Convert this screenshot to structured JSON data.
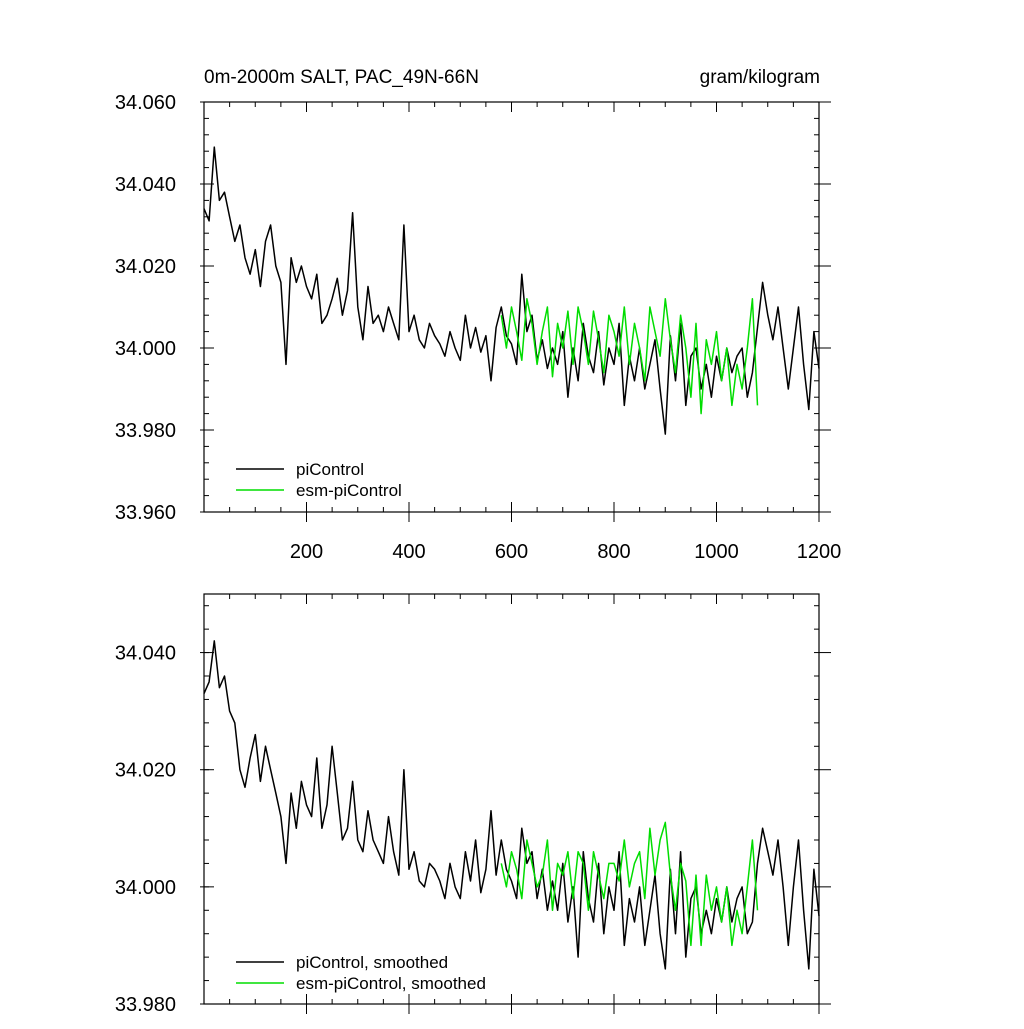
{
  "chart_data": [
    {
      "type": "line",
      "title": "0m-2000m SALT, PAC_49N-66N",
      "units": "gram/kilogram",
      "xlim": [
        0,
        1200
      ],
      "ylim": [
        33.96,
        34.06
      ],
      "xticks": [
        200,
        400,
        600,
        800,
        1000,
        1200
      ],
      "yticks": [
        "34.060",
        "34.040",
        "34.020",
        "34.000",
        "33.980",
        "33.960"
      ],
      "legend_position": "bottom-left",
      "series": [
        {
          "name": "piControl",
          "color": "#000000",
          "x": [
            0,
            10,
            20,
            30,
            40,
            50,
            60,
            70,
            80,
            90,
            100,
            110,
            120,
            130,
            140,
            150,
            160,
            170,
            180,
            190,
            200,
            210,
            220,
            230,
            240,
            250,
            260,
            270,
            280,
            290,
            300,
            310,
            320,
            330,
            340,
            350,
            360,
            370,
            380,
            390,
            400,
            410,
            420,
            430,
            440,
            450,
            460,
            470,
            480,
            490,
            500,
            510,
            520,
            530,
            540,
            550,
            560,
            570,
            580,
            590,
            600,
            610,
            620,
            630,
            640,
            650,
            660,
            670,
            680,
            690,
            700,
            710,
            720,
            730,
            740,
            750,
            760,
            770,
            780,
            790,
            800,
            810,
            820,
            830,
            840,
            850,
            860,
            870,
            880,
            890,
            900,
            910,
            920,
            930,
            940,
            950,
            960,
            970,
            980,
            990,
            1000,
            1010,
            1020,
            1030,
            1040,
            1050,
            1060,
            1070,
            1080,
            1090,
            1100,
            1110,
            1120,
            1130,
            1140,
            1150,
            1160,
            1170,
            1180,
            1190,
            1200
          ],
          "values": [
            34.034,
            34.031,
            34.049,
            34.036,
            34.038,
            34.032,
            34.026,
            34.03,
            34.022,
            34.018,
            34.024,
            34.015,
            34.026,
            34.03,
            34.02,
            34.016,
            33.996,
            34.022,
            34.016,
            34.02,
            34.015,
            34.012,
            34.018,
            34.006,
            34.008,
            34.012,
            34.017,
            34.008,
            34.014,
            34.033,
            34.01,
            34.002,
            34.015,
            34.006,
            34.008,
            34.004,
            34.01,
            34.006,
            34.002,
            34.03,
            34.004,
            34.008,
            34.002,
            34.0,
            34.006,
            34.003,
            34.001,
            33.998,
            34.004,
            34.0,
            33.997,
            34.008,
            34.0,
            34.005,
            33.999,
            34.003,
            33.992,
            34.005,
            34.01,
            34.003,
            34.001,
            33.996,
            34.018,
            34.004,
            34.008,
            33.997,
            34.002,
            33.995,
            34.0,
            33.996,
            34.004,
            33.988,
            34.0,
            33.992,
            34.006,
            33.998,
            33.994,
            34.004,
            33.991,
            34.0,
            33.996,
            34.006,
            33.986,
            33.998,
            33.992,
            34.0,
            33.99,
            33.996,
            34.002,
            33.99,
            33.979,
            34.003,
            33.992,
            34.006,
            33.986,
            33.998,
            34.0,
            33.99,
            33.996,
            33.988,
            33.998,
            33.992,
            34.0,
            33.994,
            33.998,
            34.0,
            33.988,
            33.994,
            34.005,
            34.016,
            34.008,
            34.002,
            34.01,
            34.0,
            33.99,
            34.0,
            34.01,
            33.996,
            33.985,
            34.004,
            33.995
          ]
        },
        {
          "name": "esm-piControl",
          "color": "#00dd00",
          "x": [
            580,
            590,
            600,
            610,
            620,
            630,
            640,
            650,
            660,
            670,
            680,
            690,
            700,
            710,
            720,
            730,
            740,
            750,
            760,
            770,
            780,
            790,
            800,
            810,
            820,
            830,
            840,
            850,
            860,
            870,
            880,
            890,
            900,
            910,
            920,
            930,
            940,
            950,
            960,
            970,
            980,
            990,
            1000,
            1010,
            1020,
            1030,
            1040,
            1050,
            1060,
            1070,
            1080
          ],
          "values": [
            34.008,
            34.0,
            34.01,
            34.004,
            33.997,
            34.012,
            34.006,
            33.996,
            34.004,
            34.01,
            33.993,
            34.006,
            34.0,
            34.009,
            33.996,
            34.01,
            34.004,
            33.996,
            34.009,
            34.002,
            33.994,
            34.008,
            34.004,
            33.998,
            34.01,
            33.996,
            34.006,
            34.0,
            33.992,
            34.01,
            34.004,
            33.998,
            34.012,
            34.002,
            33.994,
            34.008,
            34.0,
            33.988,
            34.006,
            33.984,
            34.002,
            33.996,
            34.004,
            33.992,
            34.0,
            33.986,
            33.996,
            33.99,
            34.0,
            34.012,
            33.986
          ]
        }
      ]
    },
    {
      "type": "line",
      "title": "",
      "xlim": [
        0,
        1200
      ],
      "ylim": [
        33.98,
        34.05
      ],
      "xticks": [
        200,
        400,
        600,
        800,
        1000,
        1200
      ],
      "yticks": [
        "34.040",
        "34.020",
        "34.000",
        "33.980"
      ],
      "legend_position": "bottom-left",
      "series": [
        {
          "name": "piControl, smoothed",
          "color": "#000000",
          "x": [
            0,
            10,
            20,
            30,
            40,
            50,
            60,
            70,
            80,
            90,
            100,
            110,
            120,
            130,
            140,
            150,
            160,
            170,
            180,
            190,
            200,
            210,
            220,
            230,
            240,
            250,
            260,
            270,
            280,
            290,
            300,
            310,
            320,
            330,
            340,
            350,
            360,
            370,
            380,
            390,
            400,
            410,
            420,
            430,
            440,
            450,
            460,
            470,
            480,
            490,
            500,
            510,
            520,
            530,
            540,
            550,
            560,
            570,
            580,
            590,
            600,
            610,
            620,
            630,
            640,
            650,
            660,
            670,
            680,
            690,
            700,
            710,
            720,
            730,
            740,
            750,
            760,
            770,
            780,
            790,
            800,
            810,
            820,
            830,
            840,
            850,
            860,
            870,
            880,
            890,
            900,
            910,
            920,
            930,
            940,
            950,
            960,
            970,
            980,
            990,
            1000,
            1010,
            1020,
            1030,
            1040,
            1050,
            1060,
            1070,
            1080,
            1090,
            1100,
            1110,
            1120,
            1130,
            1140,
            1150,
            1160,
            1170,
            1180,
            1190,
            1200
          ],
          "values": [
            34.033,
            34.035,
            34.042,
            34.034,
            34.036,
            34.03,
            34.028,
            34.02,
            34.017,
            34.022,
            34.026,
            34.018,
            34.024,
            34.02,
            34.016,
            34.012,
            34.004,
            34.016,
            34.01,
            34.018,
            34.014,
            34.012,
            34.022,
            34.01,
            34.014,
            34.024,
            34.016,
            34.008,
            34.01,
            34.018,
            34.008,
            34.006,
            34.013,
            34.008,
            34.006,
            34.004,
            34.012,
            34.006,
            34.002,
            34.02,
            34.003,
            34.006,
            34.001,
            34.0,
            34.004,
            34.003,
            34.001,
            33.998,
            34.004,
            34.0,
            33.998,
            34.006,
            34.001,
            34.008,
            33.999,
            34.003,
            34.013,
            34.002,
            34.008,
            34.003,
            34.001,
            33.998,
            34.01,
            34.004,
            34.006,
            33.998,
            34.003,
            33.996,
            34.001,
            33.996,
            34.004,
            33.994,
            34.0,
            33.988,
            34.006,
            33.998,
            33.994,
            34.004,
            33.992,
            34.0,
            33.996,
            34.006,
            33.99,
            33.998,
            33.994,
            34.0,
            33.99,
            33.996,
            34.002,
            33.992,
            33.986,
            34.003,
            33.992,
            34.006,
            33.988,
            33.998,
            34.0,
            33.992,
            33.996,
            33.992,
            33.998,
            33.994,
            34.0,
            33.994,
            33.998,
            34.0,
            33.992,
            33.994,
            34.004,
            34.01,
            34.006,
            34.002,
            34.008,
            34.0,
            33.99,
            34.0,
            34.008,
            33.996,
            33.986,
            34.003,
            33.995
          ]
        },
        {
          "name": "esm-piControl, smoothed",
          "color": "#00dd00",
          "x": [
            580,
            590,
            600,
            610,
            620,
            630,
            640,
            650,
            660,
            670,
            680,
            690,
            700,
            710,
            720,
            730,
            740,
            750,
            760,
            770,
            780,
            790,
            800,
            810,
            820,
            830,
            840,
            850,
            860,
            870,
            880,
            890,
            900,
            910,
            920,
            930,
            940,
            950,
            960,
            970,
            980,
            990,
            1000,
            1010,
            1020,
            1030,
            1040,
            1050,
            1060,
            1070,
            1080
          ],
          "values": [
            34.004,
            34.0,
            34.006,
            34.003,
            33.998,
            34.008,
            34.004,
            34.0,
            34.002,
            34.008,
            33.996,
            34.004,
            34.002,
            34.006,
            33.998,
            34.006,
            34.004,
            33.996,
            34.006,
            34.002,
            33.998,
            34.004,
            34.004,
            34.001,
            34.008,
            34.0,
            34.004,
            34.006,
            33.998,
            34.01,
            34.002,
            34.008,
            34.011,
            34.002,
            33.996,
            34.004,
            34.001,
            33.99,
            34.002,
            33.99,
            34.002,
            33.996,
            34.0,
            33.994,
            34.0,
            33.99,
            33.996,
            33.992,
            34.0,
            34.008,
            33.996
          ]
        }
      ]
    }
  ]
}
